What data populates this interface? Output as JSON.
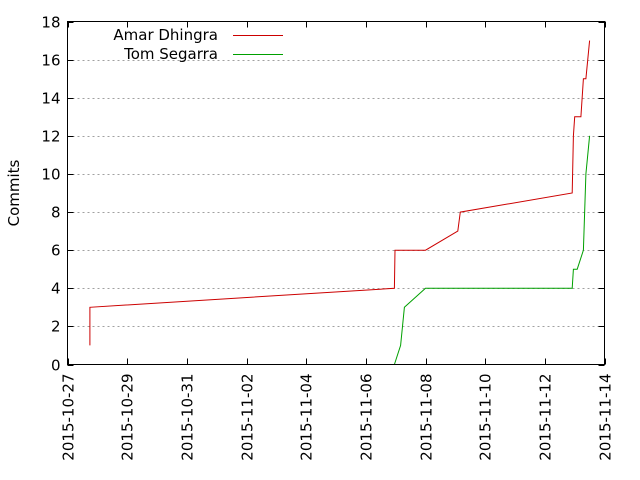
{
  "chart_data": {
    "type": "line",
    "title": "",
    "xlabel": "",
    "ylabel": "Commits",
    "x_axis_kind": "date",
    "xlim": [
      "2015-10-27",
      "2015-11-14"
    ],
    "ylim": [
      0,
      18
    ],
    "x_ticks": [
      "2015-10-27",
      "2015-10-29",
      "2015-10-31",
      "2015-11-02",
      "2015-11-04",
      "2015-11-06",
      "2015-11-08",
      "2015-11-10",
      "2015-11-12",
      "2015-11-14"
    ],
    "y_ticks": [
      0,
      2,
      4,
      6,
      8,
      10,
      12,
      14,
      16,
      18
    ],
    "grid": true,
    "legend": {
      "position": "top-left"
    },
    "series": [
      {
        "name": "Amar Dhingra",
        "color": "#cc0000",
        "points": [
          [
            "2015-10-27 18:00",
            1
          ],
          [
            "2015-10-27 18:00",
            3
          ],
          [
            "2015-11-06 23:00",
            4
          ],
          [
            "2015-11-06 23:30",
            6
          ],
          [
            "2015-11-08 00:00",
            6
          ],
          [
            "2015-11-09 02:00",
            7
          ],
          [
            "2015-11-09 04:00",
            8
          ],
          [
            "2015-11-12 22:00",
            9
          ],
          [
            "2015-11-12 23:00",
            12
          ],
          [
            "2015-11-13 00:00",
            13
          ],
          [
            "2015-11-13 05:00",
            13
          ],
          [
            "2015-11-13 07:00",
            15
          ],
          [
            "2015-11-13 09:00",
            15
          ],
          [
            "2015-11-13 12:00",
            17
          ]
        ]
      },
      {
        "name": "Tom Segarra",
        "color": "#00a000",
        "points": [
          [
            "2015-11-06 23:00",
            0
          ],
          [
            "2015-11-07 04:00",
            1
          ],
          [
            "2015-11-07 07:00",
            3
          ],
          [
            "2015-11-08 00:00",
            4
          ],
          [
            "2015-11-12 22:00",
            4
          ],
          [
            "2015-11-12 23:00",
            5
          ],
          [
            "2015-11-13 02:00",
            5
          ],
          [
            "2015-11-13 07:00",
            6
          ],
          [
            "2015-11-13 09:00",
            10
          ],
          [
            "2015-11-13 12:00",
            12
          ]
        ]
      }
    ]
  }
}
